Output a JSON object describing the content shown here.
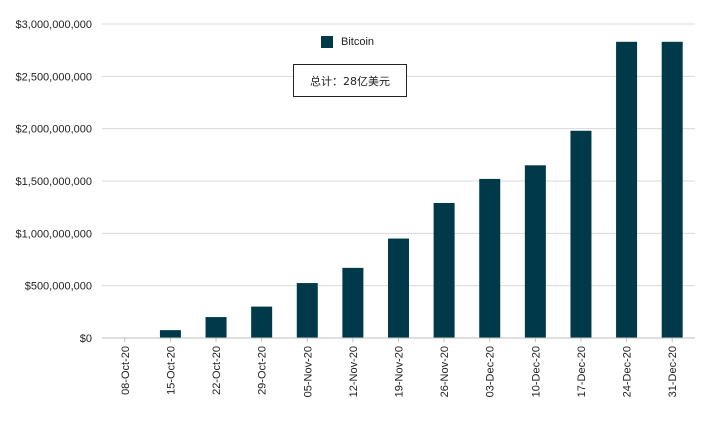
{
  "chart_data": {
    "type": "bar",
    "categories": [
      "08-Oct-20",
      "15-Oct-20",
      "22-Oct-20",
      "29-Oct-20",
      "05-Nov-20",
      "12-Nov-20",
      "19-Nov-20",
      "26-Nov-20",
      "03-Dec-20",
      "10-Dec-20",
      "17-Dec-20",
      "24-Dec-20",
      "31-Dec-20"
    ],
    "series": [
      {
        "name": "Bitcoin",
        "values": [
          0,
          75000000,
          200000000,
          300000000,
          525000000,
          670000000,
          950000000,
          1290000000,
          1520000000,
          1650000000,
          1980000000,
          2830000000,
          2830000000
        ]
      }
    ],
    "y_ticks": [
      0,
      500000000,
      1000000000,
      1500000000,
      2000000000,
      2500000000,
      3000000000
    ],
    "y_tick_labels": [
      "$0",
      "$500,000,000",
      "$1,000,000,000",
      "$1,500,000,000",
      "$2,000,000,000",
      "$2,500,000,000",
      "$3,000,000,000"
    ],
    "ylim": [
      0,
      3000000000
    ],
    "grid": true,
    "legend_position": "top-center",
    "annotation": "总计：28亿美元",
    "colors": {
      "bar": "#003a4a",
      "grid": "#d9d9d9",
      "axis": "#bfbfbf",
      "text": "#222222"
    }
  }
}
